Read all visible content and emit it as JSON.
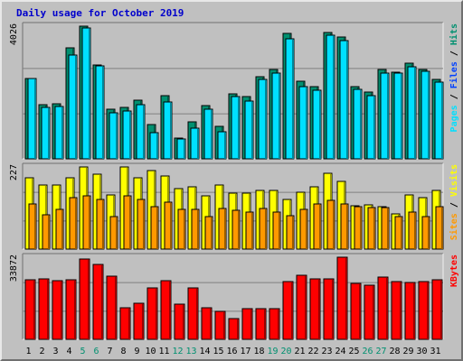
{
  "title": "Daily usage for October 2019",
  "colors": {
    "title": "#0000cc",
    "background": "#c0c0c0",
    "pages": "#00e0ff",
    "files": "#0040ff",
    "hits": "#009070",
    "sites": "#ff9900",
    "visits": "#ffff00",
    "kbytes": "#ff0000",
    "weekend_label": "#009070",
    "weekday_label": "#000000"
  },
  "chart_data": [
    {
      "type": "bar",
      "panel": "pages-files-hits",
      "y_max_label": "4026",
      "y_max": 4026,
      "legend": [
        "Pages",
        "Files",
        "Hits"
      ],
      "categories": [
        "1",
        "2",
        "3",
        "4",
        "5",
        "6",
        "7",
        "8",
        "9",
        "10",
        "11",
        "12",
        "13",
        "14",
        "15",
        "16",
        "17",
        "18",
        "19",
        "20",
        "21",
        "22",
        "23",
        "24",
        "25",
        "26",
        "27",
        "28",
        "29",
        "30",
        "31"
      ],
      "weekend_days": [
        "5",
        "6",
        "12",
        "13",
        "19",
        "20",
        "26",
        "27"
      ],
      "series": [
        {
          "name": "Hits",
          "values": [
            2440,
            1640,
            1670,
            3370,
            4026,
            2860,
            1500,
            1560,
            1780,
            1030,
            1930,
            630,
            1120,
            1620,
            980,
            1980,
            1880,
            2480,
            2720,
            3800,
            2350,
            2180,
            3840,
            3700,
            2180,
            2020,
            2720,
            2630,
            2890,
            2700,
            2400
          ]
        },
        {
          "name": "Files",
          "values": [
            1650,
            1100,
            1100,
            2250,
            2700,
            1900,
            950,
            1000,
            1150,
            650,
            1250,
            400,
            700,
            1050,
            600,
            1300,
            1200,
            1600,
            1800,
            2600,
            1550,
            1450,
            2600,
            2450,
            1450,
            1350,
            1800,
            1750,
            1950,
            1800,
            1600
          ]
        },
        {
          "name": "Pages",
          "values": [
            2430,
            1570,
            1600,
            3140,
            3960,
            2810,
            1410,
            1440,
            1640,
            800,
            1730,
            600,
            920,
            1500,
            830,
            1880,
            1760,
            2410,
            2610,
            3650,
            2200,
            2080,
            3740,
            3590,
            2100,
            1910,
            2590,
            2600,
            2780,
            2650,
            2330
          ]
        }
      ]
    },
    {
      "type": "bar",
      "panel": "sites-visits",
      "y_max_label": "227",
      "y_max": 227,
      "legend": [
        "Sites",
        "Visits"
      ],
      "categories": [
        "1",
        "2",
        "3",
        "4",
        "5",
        "6",
        "7",
        "8",
        "9",
        "10",
        "11",
        "12",
        "13",
        "14",
        "15",
        "16",
        "17",
        "18",
        "19",
        "20",
        "21",
        "22",
        "23",
        "24",
        "25",
        "26",
        "27",
        "28",
        "29",
        "30",
        "31"
      ],
      "series": [
        {
          "name": "Visits",
          "values": [
            197,
            176,
            176,
            197,
            227,
            208,
            150,
            227,
            197,
            218,
            203,
            166,
            171,
            148,
            176,
            155,
            154,
            161,
            162,
            138,
            156,
            172,
            210,
            187,
            120,
            123,
            117,
            98,
            150,
            141,
            163
          ]
        },
        {
          "name": "Sites",
          "values": [
            125,
            95,
            110,
            141,
            148,
            136,
            90,
            148,
            138,
            118,
            130,
            110,
            109,
            90,
            112,
            107,
            102,
            112,
            102,
            93,
            110,
            124,
            134,
            125,
            116,
            115,
            114,
            90,
            102,
            90,
            117
          ]
        }
      ]
    },
    {
      "type": "bar",
      "panel": "kbytes",
      "y_max_label": "33872",
      "y_max": 33872,
      "legend": [
        "KBytes"
      ],
      "categories": [
        "1",
        "2",
        "3",
        "4",
        "5",
        "6",
        "7",
        "8",
        "9",
        "10",
        "11",
        "12",
        "13",
        "14",
        "15",
        "16",
        "17",
        "18",
        "19",
        "20",
        "21",
        "22",
        "23",
        "24",
        "25",
        "26",
        "27",
        "28",
        "29",
        "30",
        "31"
      ],
      "series": [
        {
          "name": "KBytes",
          "values": [
            24500,
            24900,
            24300,
            24600,
            33200,
            31000,
            25900,
            13200,
            14900,
            21300,
            24300,
            14500,
            21400,
            13000,
            11400,
            8500,
            12800,
            12600,
            12700,
            24000,
            26600,
            24900,
            25100,
            33872,
            23000,
            22400,
            25800,
            23700,
            23300,
            24000,
            24400
          ]
        }
      ]
    }
  ]
}
